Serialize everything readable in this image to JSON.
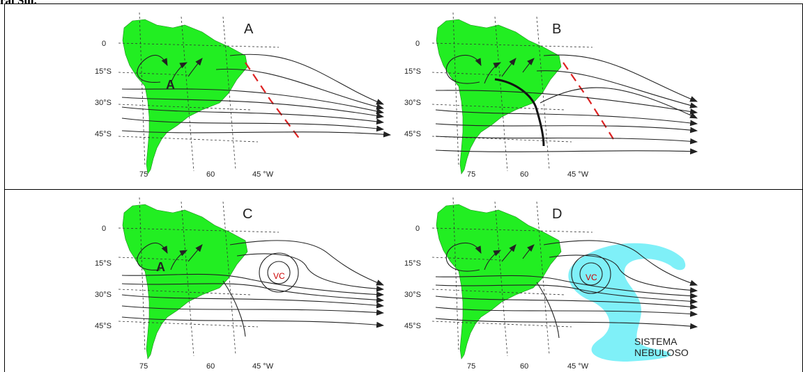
{
  "page": {
    "cut_title": "ral Sul."
  },
  "colors": {
    "land": "#22ee22",
    "stream": "#222222",
    "trough": "#dd2222",
    "vortex": "#cc0000",
    "cloud": "#7ff0f8"
  },
  "panels": [
    {
      "letter": "A",
      "lat": [
        "0",
        "15°S",
        "30°S",
        "45°S"
      ],
      "lon": [
        "75",
        "60",
        "45 °W"
      ],
      "high": "A",
      "vortex": "",
      "cloud": ""
    },
    {
      "letter": "B",
      "lat": [
        "0",
        "15°S",
        "30°S",
        "45°S"
      ],
      "lon": [
        "75",
        "60",
        "45 °W"
      ],
      "high": "",
      "vortex": "",
      "cloud": ""
    },
    {
      "letter": "C",
      "lat": [
        "0",
        "15°S",
        "30°S",
        "45°S"
      ],
      "lon": [
        "75",
        "60",
        "45 °W"
      ],
      "high": "A",
      "vortex": "VC",
      "cloud": ""
    },
    {
      "letter": "D",
      "lat": [
        "0",
        "15°S",
        "30°S",
        "45°S"
      ],
      "lon": [
        "75",
        "60",
        "45 °W"
      ],
      "high": "",
      "vortex": "VC",
      "cloud_line1": "SISTEMA",
      "cloud_line2": "NEBULOSO"
    }
  ]
}
